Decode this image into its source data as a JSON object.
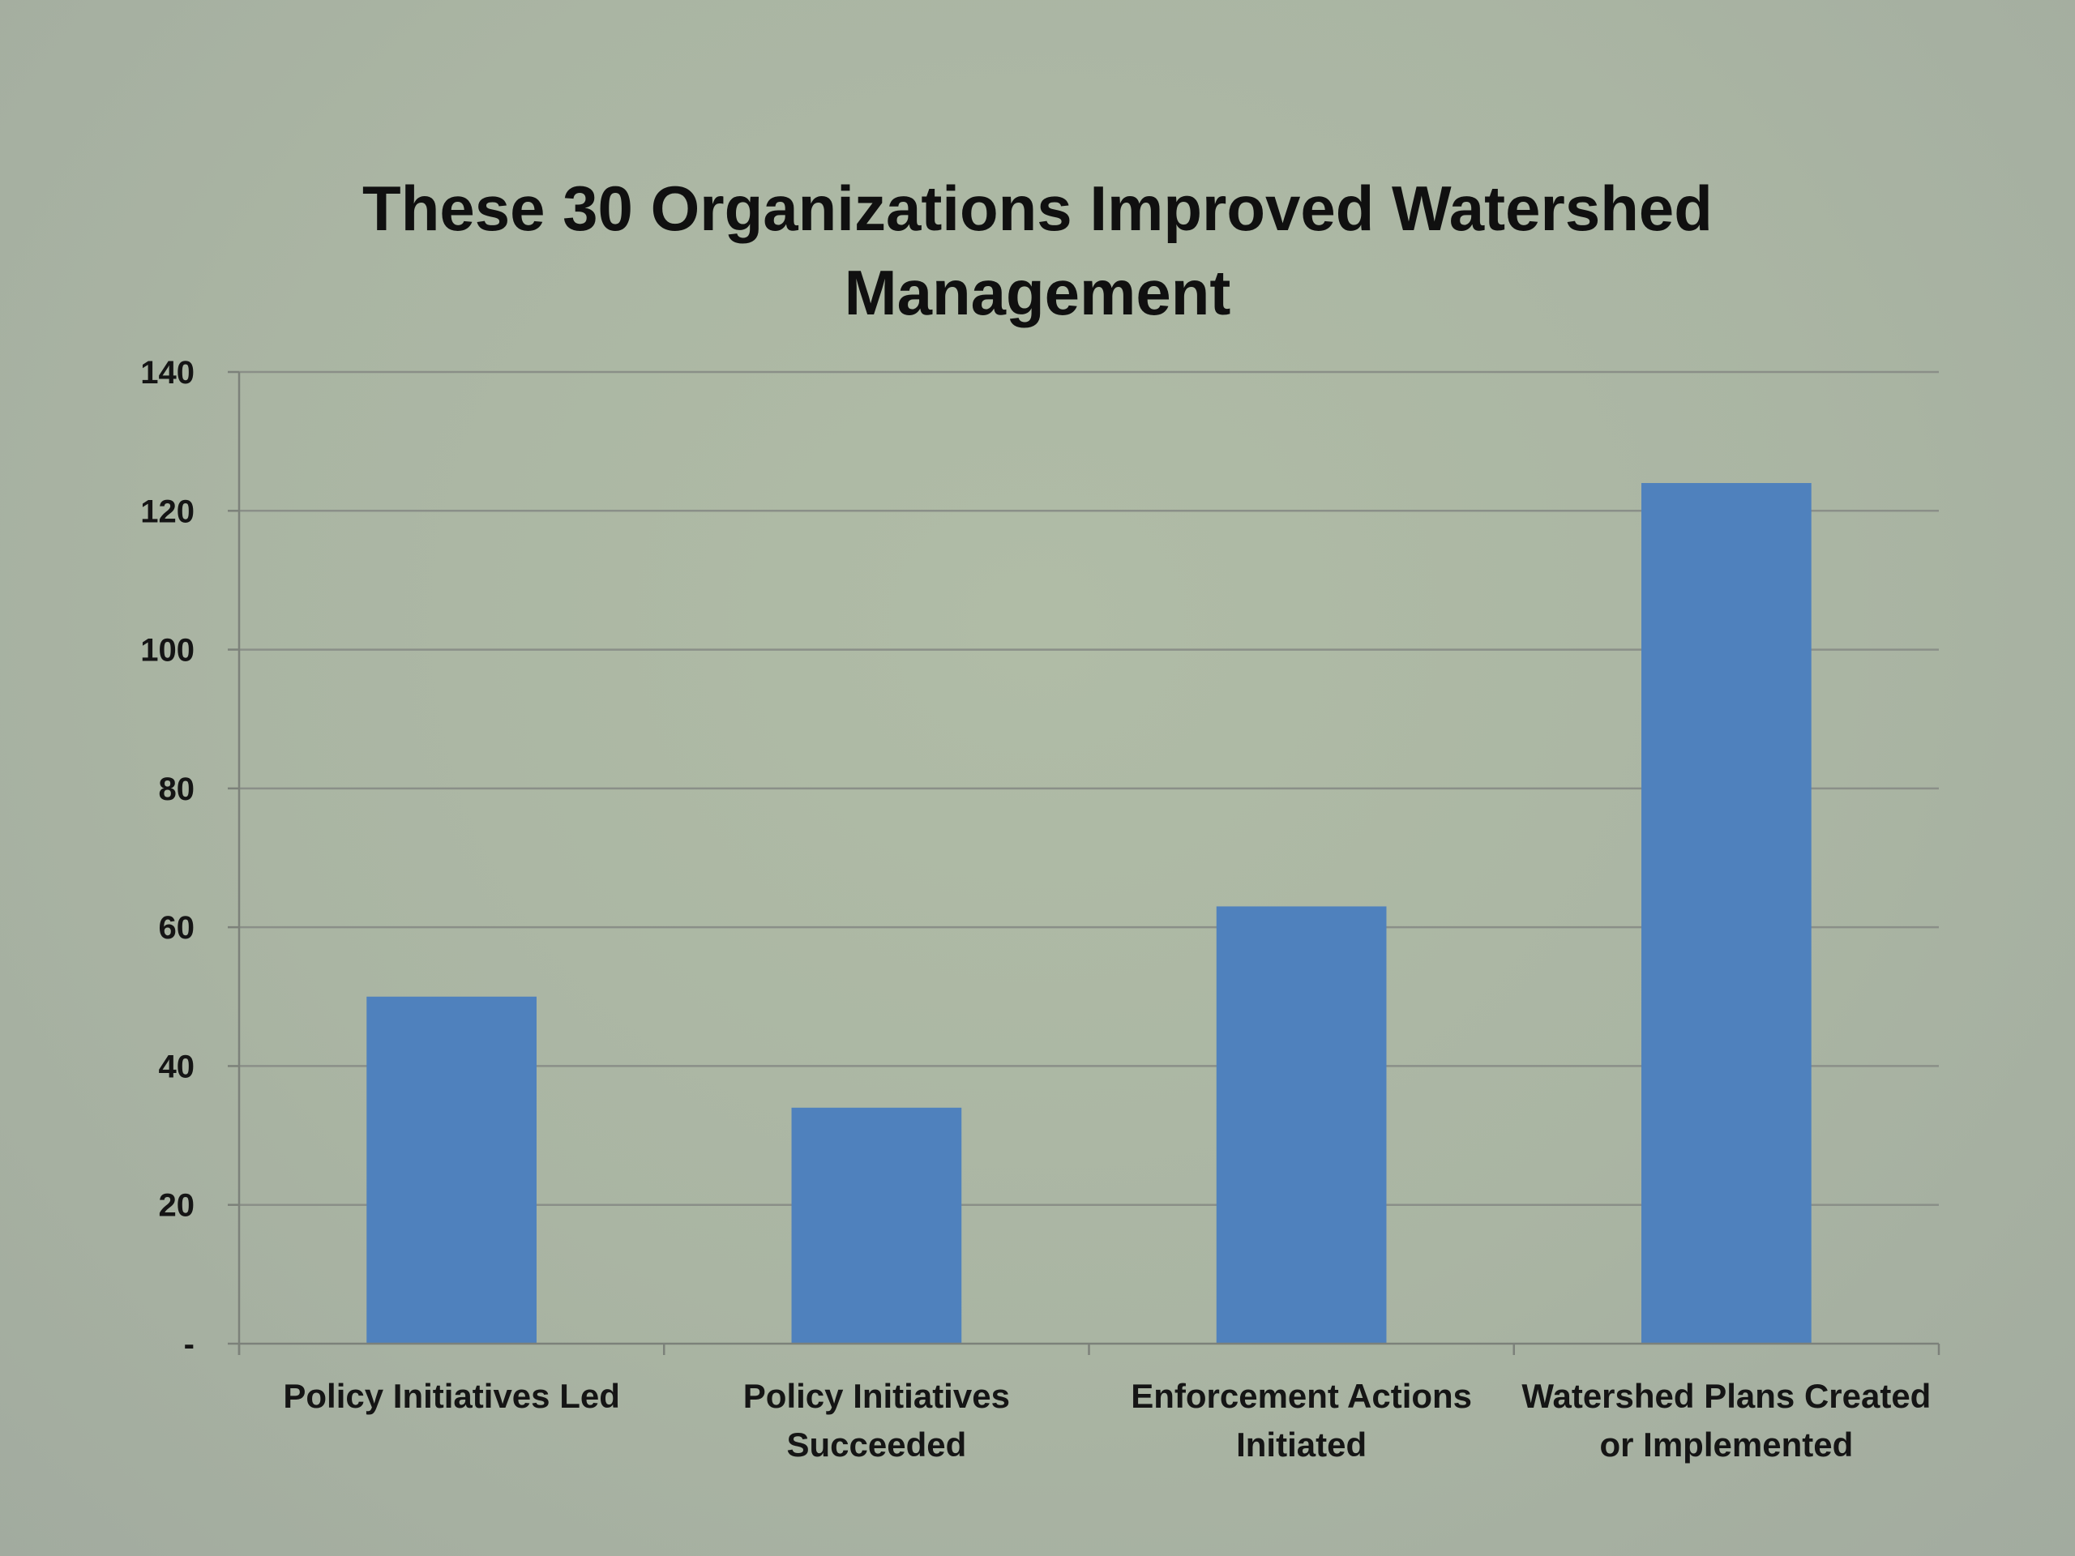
{
  "chart_data": {
    "type": "bar",
    "title": "These 30 Organizations Improved Watershed Management",
    "categories": [
      [
        "Policy Initiatives Led"
      ],
      [
        "Policy Initiatives",
        "Succeeded"
      ],
      [
        "Enforcement Actions",
        "Initiated"
      ],
      [
        "Watershed Plans Created",
        "or Implemented"
      ]
    ],
    "values": [
      50,
      34,
      63,
      124
    ],
    "ylim": [
      0,
      140
    ],
    "yticks": [
      0,
      20,
      40,
      60,
      80,
      100,
      120,
      140
    ],
    "ytick_labels": [
      "-",
      "20",
      "40",
      "60",
      "80",
      "100",
      "120",
      "140"
    ],
    "xlabel": "",
    "ylabel": "",
    "grid": true,
    "legend": "none",
    "colors": {
      "bar": "#4f81bd",
      "grid": "#8a8f88",
      "axis": "#7c817a",
      "background": "#adb8a4"
    }
  }
}
